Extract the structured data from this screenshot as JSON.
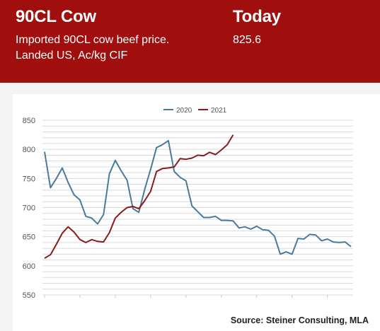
{
  "header": {
    "title": "90CL Cow",
    "subtitle_line1": "Imported 90CL cow beef price.",
    "subtitle_line2": "Landed US, Ac/kg CIF",
    "today_label": "Today",
    "today_value": "825.6"
  },
  "source": "Source: Steiner Consulting, MLA",
  "colors": {
    "header_bg": "#a00f0e",
    "series_2020": "#4a7a9b",
    "series_2021": "#8b1a1a",
    "grid": "#d9d9d9"
  },
  "chart_data": {
    "type": "line",
    "ylim": [
      550,
      850
    ],
    "yticks": [
      550,
      600,
      650,
      700,
      750,
      800,
      850
    ],
    "ytick_labels": [
      "550",
      "600",
      "650",
      "700",
      "750",
      "800",
      "850"
    ],
    "grid": true,
    "legend_position": "top-center",
    "series": [
      {
        "name": "2020",
        "values": [
          796,
          734,
          750,
          768,
          743,
          722,
          713,
          685,
          682,
          672,
          688,
          758,
          781,
          763,
          747,
          698,
          692,
          732,
          766,
          803,
          808,
          815,
          762,
          752,
          746,
          703,
          693,
          683,
          683,
          685,
          678,
          678,
          677,
          665,
          667,
          663,
          668,
          662,
          661,
          651,
          620,
          624,
          620,
          647,
          646,
          654,
          653,
          643,
          646,
          641,
          640,
          641,
          633
        ]
      },
      {
        "name": "2021",
        "values": [
          613,
          619,
          637,
          656,
          667,
          658,
          645,
          640,
          645,
          642,
          641,
          657,
          682,
          692,
          700,
          702,
          698,
          712,
          728,
          762,
          767,
          768,
          770,
          784,
          783,
          785,
          790,
          789,
          795,
          791,
          799,
          808,
          825
        ]
      }
    ]
  }
}
